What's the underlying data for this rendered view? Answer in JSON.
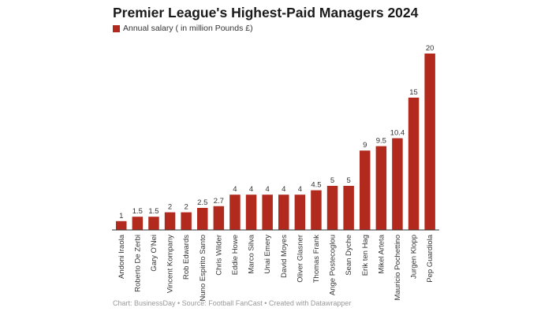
{
  "chart_data": {
    "type": "bar",
    "title": "Premier League's Highest-Paid Managers 2024",
    "legend": [
      {
        "label": "Annual salary ( in million Pounds £)",
        "color": "#b22a1e"
      }
    ],
    "legend_placement": "top-left",
    "categories": [
      "Andoni Iraola",
      "Roberto De Zerbi",
      "Gary O'Nei",
      "Vincent Kompany",
      "Rob Edwards",
      "Nuno Espirito Santo",
      "Chris Wilder",
      "Eddie Howe",
      "Marco Silva",
      "Unai Emery",
      "David Moyes",
      "Oliver Glasner",
      "Thomas Frank",
      "Ange Postecoglou",
      "Sean Dyche",
      "Erik ten Hag",
      "Mikel Arteta",
      "Mauricio Pochettino",
      "Jurgen Klopp",
      "Pep Guardiola"
    ],
    "values": [
      1,
      1.5,
      1.5,
      2,
      2,
      2.5,
      2.7,
      4,
      4,
      4,
      4,
      4,
      4.5,
      5,
      5,
      9,
      9.5,
      10.4,
      15,
      20
    ],
    "ylim": [
      0,
      20
    ],
    "grid": false,
    "bar_color": "#b22a1e"
  },
  "footer": "Chart: BusinessDay • Source: Football FanCast • Created with Datawrapper"
}
